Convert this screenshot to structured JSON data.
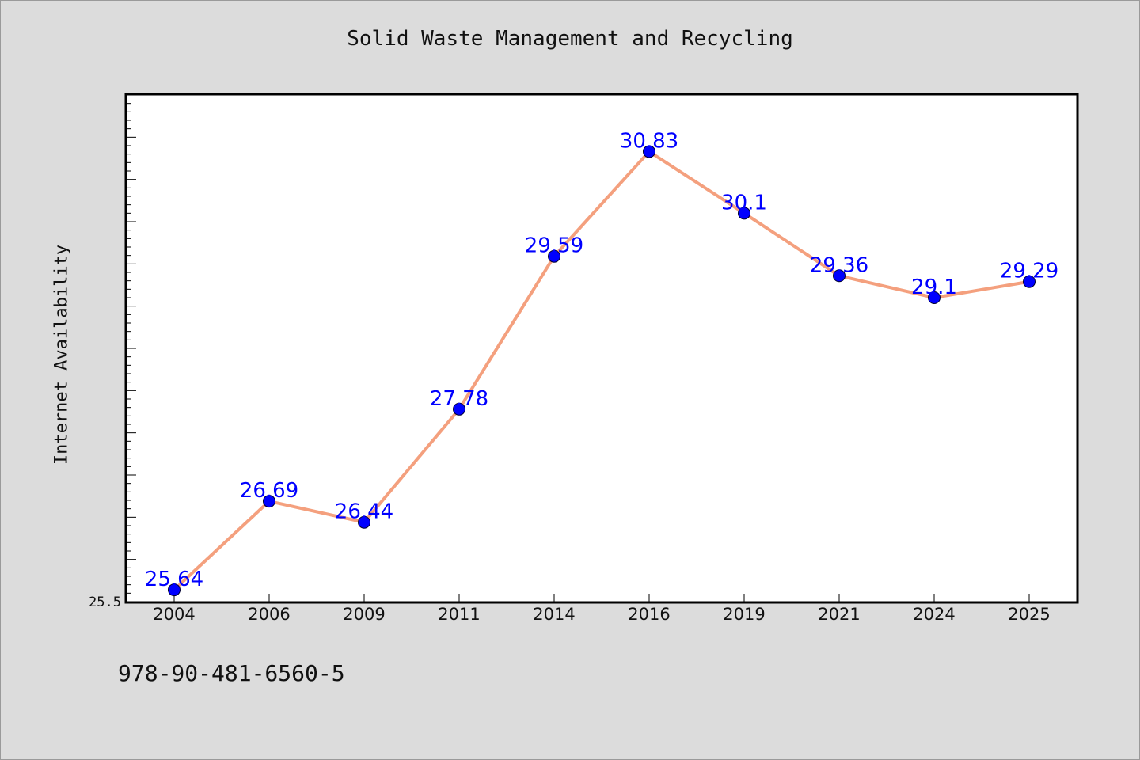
{
  "chart_data": {
    "type": "line",
    "title": "Solid Waste Management and Recycling",
    "xlabel": "",
    "ylabel": "Internet Availability",
    "categories": [
      "2004",
      "2006",
      "2009",
      "2011",
      "2014",
      "2016",
      "2019",
      "2021",
      "2024",
      "2025"
    ],
    "series": [
      {
        "values": [
          25.64,
          26.69,
          26.44,
          27.78,
          29.59,
          30.83,
          30.1,
          29.36,
          29.1,
          29.29
        ]
      }
    ],
    "data_labels": [
      "25.64",
      "26.69",
      "26.44",
      "27.78",
      "29.59",
      "30.83",
      "30.1",
      "29.36",
      "29.1",
      "29.29"
    ],
    "ylim": [
      25.5,
      31.5
    ],
    "y_tick_labels": [
      "25.5"
    ],
    "grid": false,
    "line_color": "#f4a07e",
    "marker_color": "#0000ff",
    "label_color": "#0000ff"
  },
  "footer": {
    "text": "978-90-481-6560-5"
  }
}
